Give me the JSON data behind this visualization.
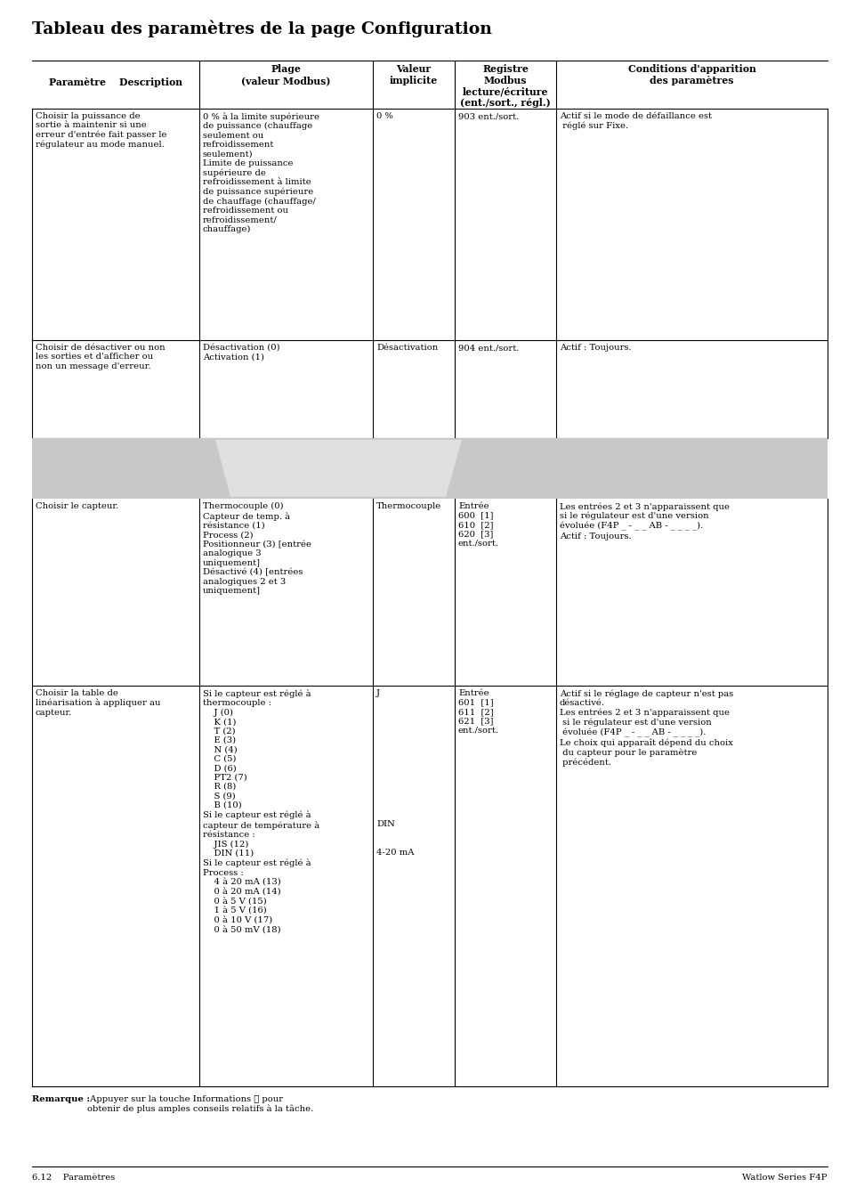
{
  "title": "Tableau des paramètres de la page Configuration",
  "footer_left": "6.12    Paramètres",
  "footer_right": "Watlow Series F4P",
  "note_bold": "Remarque :",
  "note_rest": " Appuyer sur la touche Informations ℹ pour\nobtenir de plus amples conseils relatifs à la tâche.",
  "background_color": "#ffffff",
  "gray_band_color": "#c8c8c8",
  "row1_desc": "Choisir la puissance de\nsortie à maintenir si une\nerreur d'entrée fait passer le\nrégulateur au mode manuel.",
  "row1_range": "0 % à la limite supérieure\nde puissance (chauffage\nseulement ou\nrefroidissement\nseulement)\nLimite de puissance\nsupérieure de\nrefroidissement à limite\nde puissance supérieure\nde chauffage (chauffage/\nrefroidissement ou\nrefroidissement/\nchauffage)",
  "row1_default": "0 %",
  "row1_register": "903 ent./sort.",
  "row1_conditions": "Actif si le mode de défaillance est\n réglé sur Fixe.",
  "row2_desc": "Choisir de désactiver ou non\nles sorties et d'afficher ou\nnon un message d'erreur.",
  "row2_range": "Désactivation (0)\nActivation (1)",
  "row2_default": "Désactivation",
  "row2_register": "904 ent./sort.",
  "row2_conditions": "Actif : Toujours.",
  "row3_desc": "Choisir le capteur.",
  "row3_range": "Thermocouple (0)\nCapteur de temp. à\nrésistance (1)\nProcess (2)\nPositionneur (3) [entrée\nanalogique 3\nuniquement]\nDésactivé (4) [entrées\nanalogiques 2 et 3\nuniquement]",
  "row3_default": "Thermocouple",
  "row3_register": "Entrée\n600  [1]\n610  [2]\n620  [3]\nent./sort.",
  "row3_conditions": "Les entrées 2 et 3 n'apparaissent que\nsi le régulateur est d'une version\névoluée (F4P _ - _ _ AB - _ _ _ _).\nActif : Toujours.",
  "row4_desc": "Choisir la table de\nlinéarisation à appliquer au\ncapteur.",
  "row4_range": "Si le capteur est réglé à\nthermocouple :\n    J (0)\n    K (1)\n    T (2)\n    E (3)\n    N (4)\n    C (5)\n    D (6)\n    PT2 (7)\n    R (8)\n    S (9)\n    B (10)\nSi le capteur est réglé à\ncapteur de température à\nrésistance :\n    JIS (12)\n    DIN (11)\nSi le capteur est réglé à\nProcess :\n    4 à 20 mA (13)\n    0 à 20 mA (14)\n    0 à 5 V (15)\n    1 à 5 V (16)\n    0 à 10 V (17)\n    0 à 50 mV (18)",
  "row4_default_j": "J",
  "row4_default_din": "DIN",
  "row4_default_ma": "4-20 mA",
  "row4_register": "Entrée\n601  [1]\n611  [2]\n621  [3]\nent./sort.",
  "row4_conditions": "Actif si le réglage de capteur n'est pas\ndésactivé.\nLes entrées 2 et 3 n'apparaissent que\n si le régulateur est d'une version\n évoluée (F4P _ - _ _ AB - _ _ _ _).\nLe choix qui apparaît dépend du choix\n du capteur pour le paramètre\n précédent."
}
